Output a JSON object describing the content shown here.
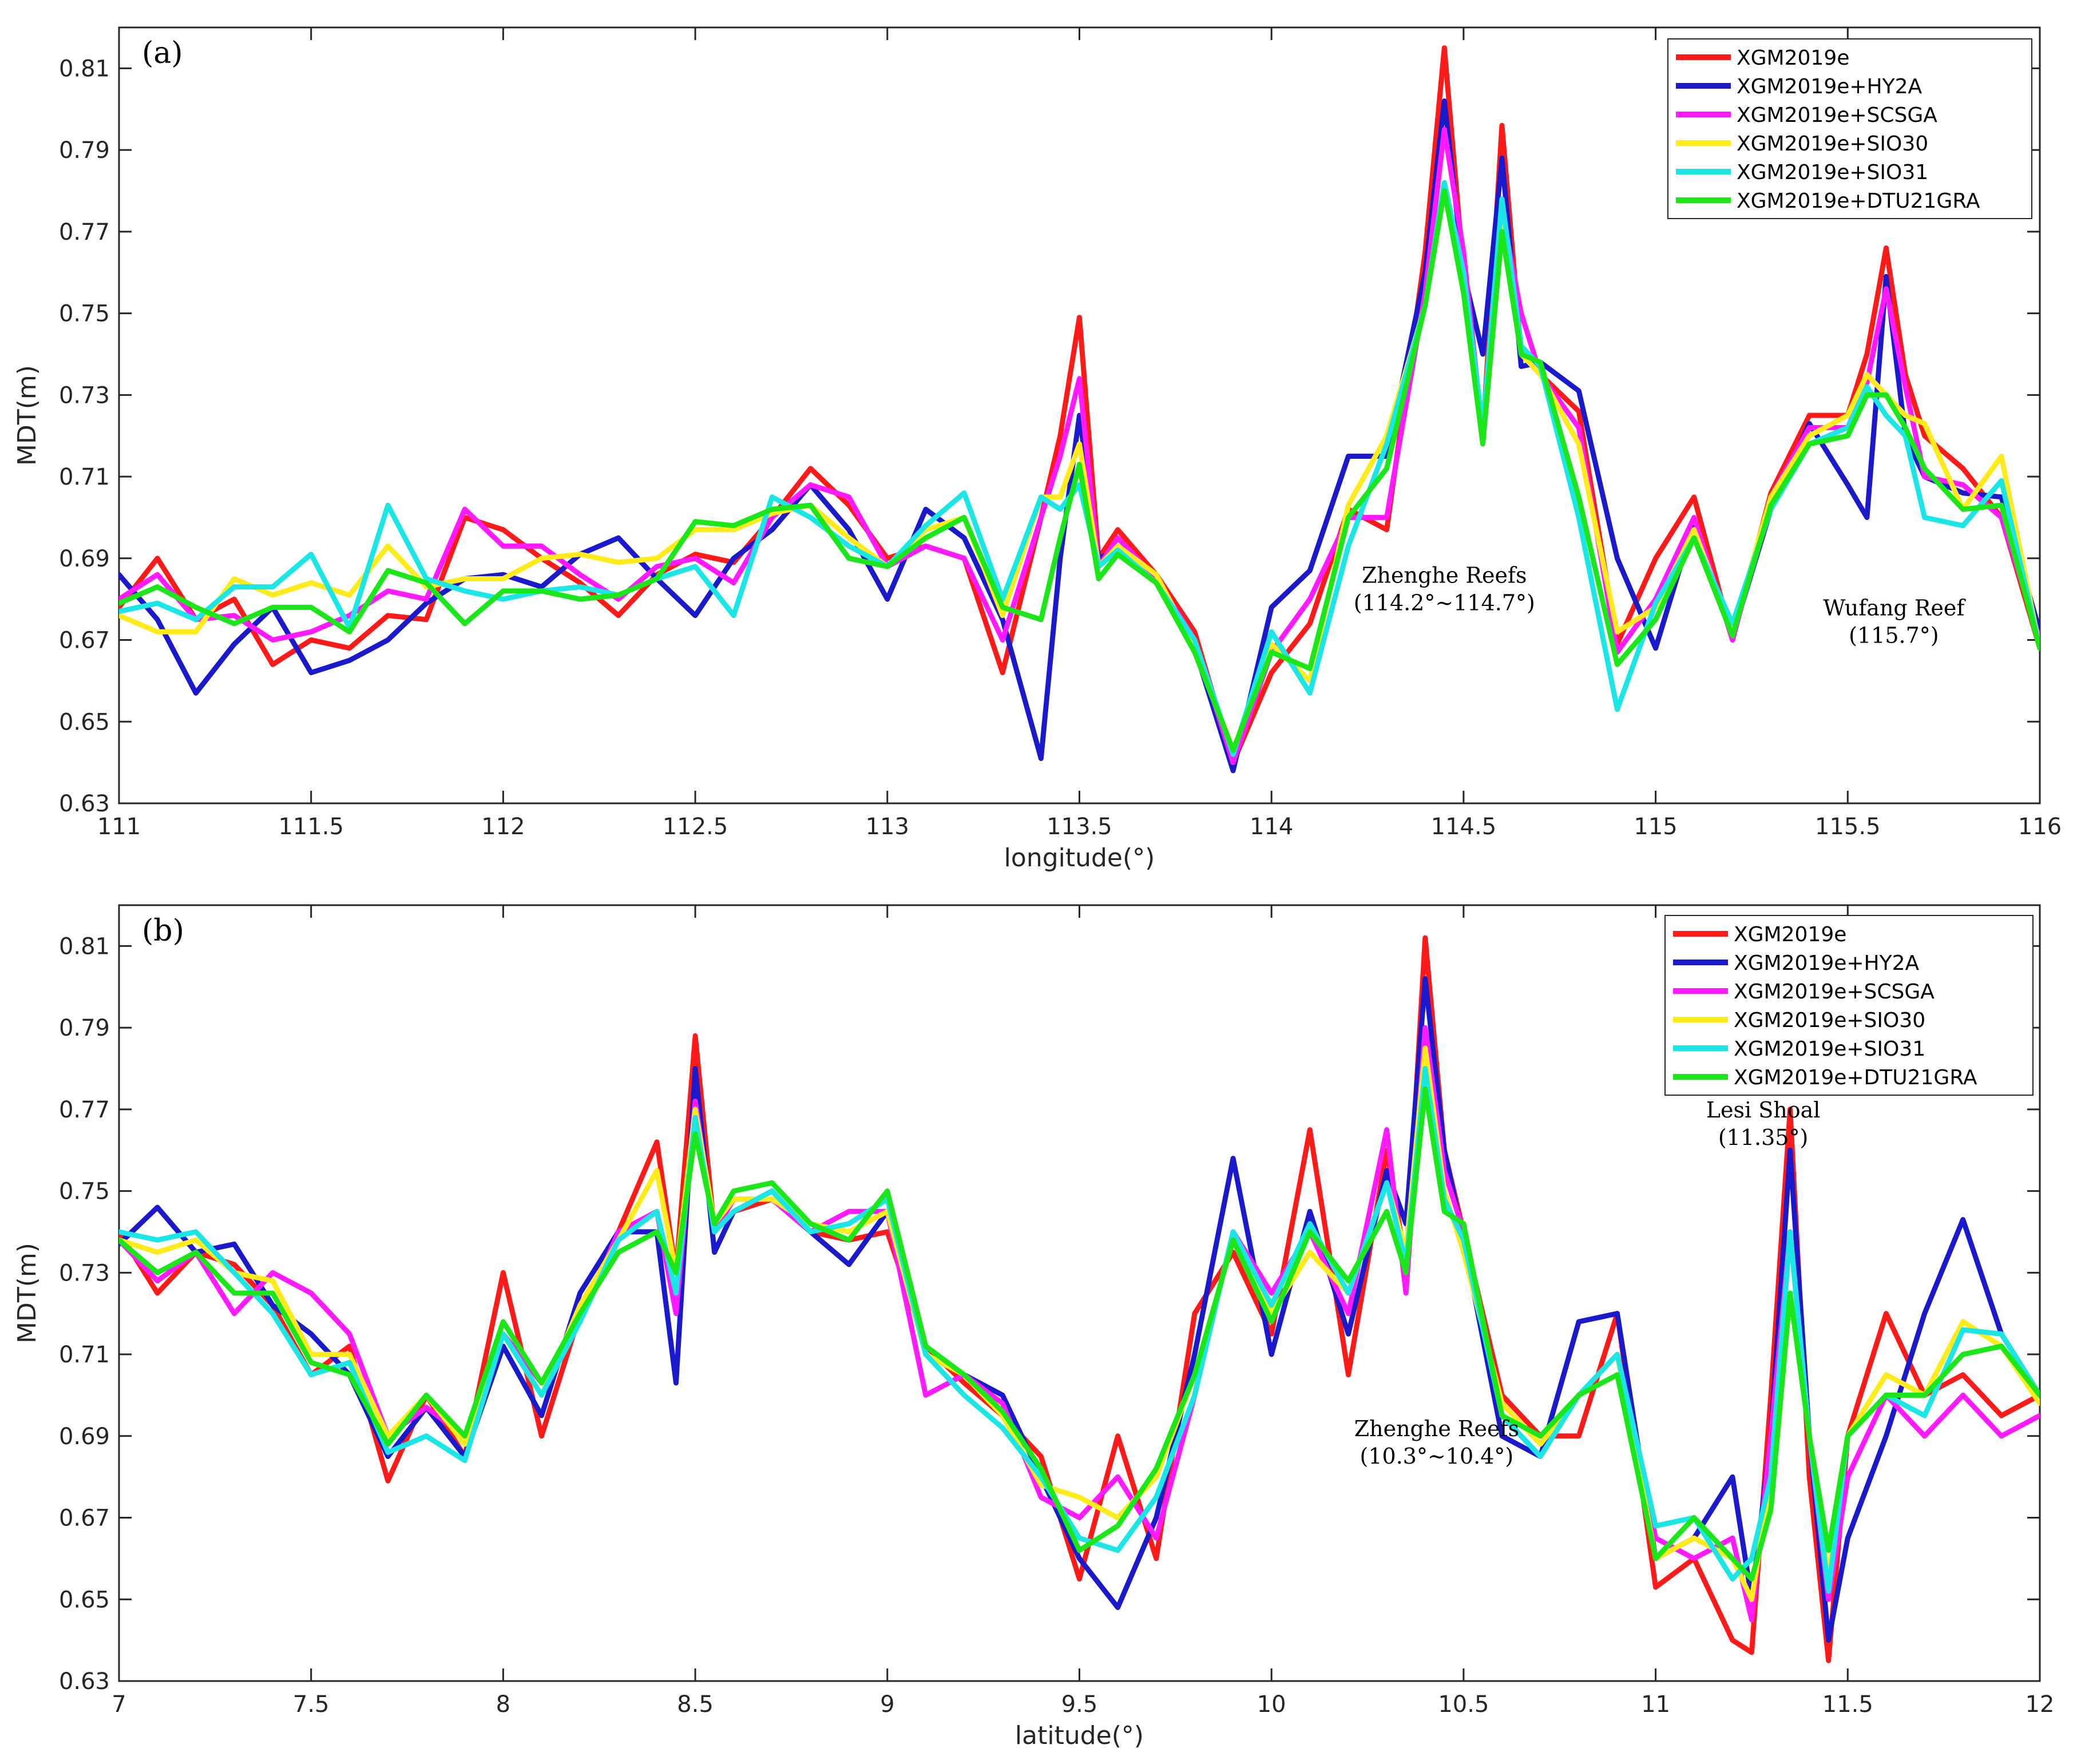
{
  "chart_data": [
    {
      "type": "line",
      "panel_label": "(a)",
      "xlabel": "longitude(°)",
      "ylabel": "MDT(m)",
      "xlim": [
        111,
        116
      ],
      "ylim": [
        0.63,
        0.82
      ],
      "xticks": [
        111,
        111.5,
        112,
        112.5,
        113,
        113.5,
        114,
        114.5,
        115,
        115.5,
        116
      ],
      "xtick_labels": [
        "111",
        "111.5",
        "112",
        "112.5",
        "113",
        "113.5",
        "114",
        "114.5",
        "115",
        "115.5",
        "116"
      ],
      "yticks": [
        0.63,
        0.65,
        0.67,
        0.69,
        0.71,
        0.73,
        0.75,
        0.77,
        0.79,
        0.81
      ],
      "ytick_labels": [
        "0.63",
        "0.65",
        "0.67",
        "0.69",
        "0.71",
        "0.73",
        "0.75",
        "0.77",
        "0.79",
        "0.81"
      ],
      "legend_position": "top-right",
      "annotations": [
        {
          "lines": [
            "Zhenghe Reefs",
            "(114.2°~114.7°)"
          ],
          "x": 114.45,
          "y": 0.684
        },
        {
          "lines": [
            "Wufang Reef",
            "(115.7°)"
          ],
          "x": 115.62,
          "y": 0.676
        }
      ],
      "x": [
        111.0,
        111.1,
        111.2,
        111.3,
        111.4,
        111.5,
        111.6,
        111.7,
        111.8,
        111.9,
        112.0,
        112.1,
        112.2,
        112.3,
        112.4,
        112.5,
        112.6,
        112.7,
        112.8,
        112.9,
        113.0,
        113.1,
        113.2,
        113.3,
        113.4,
        113.45,
        113.5,
        113.55,
        113.6,
        113.7,
        113.8,
        113.9,
        114.0,
        114.1,
        114.2,
        114.3,
        114.4,
        114.45,
        114.5,
        114.55,
        114.6,
        114.65,
        114.7,
        114.8,
        114.9,
        115.0,
        115.1,
        115.2,
        115.3,
        115.4,
        115.5,
        115.55,
        115.6,
        115.65,
        115.7,
        115.8,
        115.9,
        116.0
      ],
      "series": [
        {
          "name": "XGM2019e",
          "color": "#ff1a1a",
          "values": [
            0.678,
            0.69,
            0.675,
            0.68,
            0.664,
            0.67,
            0.668,
            0.676,
            0.675,
            0.7,
            0.697,
            0.69,
            0.684,
            0.676,
            0.686,
            0.691,
            0.689,
            0.7,
            0.712,
            0.703,
            0.69,
            0.693,
            0.69,
            0.662,
            0.7,
            0.72,
            0.749,
            0.69,
            0.697,
            0.686,
            0.672,
            0.64,
            0.662,
            0.674,
            0.702,
            0.697,
            0.765,
            0.815,
            0.76,
            0.72,
            0.796,
            0.74,
            0.735,
            0.726,
            0.669,
            0.69,
            0.705,
            0.67,
            0.706,
            0.725,
            0.725,
            0.74,
            0.766,
            0.735,
            0.72,
            0.712,
            0.7,
            0.668
          ]
        },
        {
          "name": "XGM2019e+HY2A",
          "color": "#1a1acc",
          "values": [
            0.686,
            0.675,
            0.657,
            0.669,
            0.678,
            0.662,
            0.665,
            0.67,
            0.679,
            0.685,
            0.686,
            0.683,
            0.691,
            0.695,
            0.685,
            0.676,
            0.69,
            0.697,
            0.708,
            0.697,
            0.68,
            0.702,
            0.695,
            0.675,
            0.641,
            0.69,
            0.725,
            0.69,
            0.692,
            0.684,
            0.668,
            0.638,
            0.678,
            0.687,
            0.715,
            0.715,
            0.76,
            0.802,
            0.76,
            0.74,
            0.788,
            0.737,
            0.738,
            0.731,
            0.69,
            0.668,
            0.699,
            0.671,
            0.702,
            0.723,
            0.708,
            0.7,
            0.759,
            0.72,
            0.71,
            0.706,
            0.705,
            0.672
          ]
        },
        {
          "name": "XGM2019e+SCSGA",
          "color": "#ff1aff",
          "values": [
            0.68,
            0.686,
            0.675,
            0.676,
            0.67,
            0.672,
            0.676,
            0.682,
            0.68,
            0.702,
            0.693,
            0.693,
            0.686,
            0.68,
            0.688,
            0.69,
            0.684,
            0.7,
            0.708,
            0.705,
            0.688,
            0.693,
            0.69,
            0.67,
            0.7,
            0.715,
            0.734,
            0.688,
            0.695,
            0.685,
            0.67,
            0.64,
            0.667,
            0.68,
            0.7,
            0.7,
            0.755,
            0.795,
            0.765,
            0.72,
            0.775,
            0.75,
            0.735,
            0.722,
            0.667,
            0.68,
            0.7,
            0.67,
            0.705,
            0.722,
            0.722,
            0.733,
            0.756,
            0.732,
            0.71,
            0.708,
            0.7,
            0.67
          ]
        },
        {
          "name": "XGM2019e+SIO30",
          "color": "#ffeb1a",
          "values": [
            0.676,
            0.672,
            0.672,
            0.685,
            0.681,
            0.684,
            0.681,
            0.693,
            0.683,
            0.685,
            0.685,
            0.69,
            0.691,
            0.689,
            0.69,
            0.697,
            0.697,
            0.701,
            0.703,
            0.695,
            0.688,
            0.697,
            0.7,
            0.676,
            0.705,
            0.705,
            0.718,
            0.688,
            0.693,
            0.686,
            0.668,
            0.643,
            0.669,
            0.66,
            0.703,
            0.72,
            0.752,
            0.782,
            0.76,
            0.72,
            0.775,
            0.74,
            0.735,
            0.718,
            0.672,
            0.678,
            0.697,
            0.672,
            0.705,
            0.72,
            0.725,
            0.735,
            0.73,
            0.725,
            0.723,
            0.702,
            0.715,
            0.668
          ]
        },
        {
          "name": "XGM2019e+SIO31",
          "color": "#1ae6e6",
          "values": [
            0.677,
            0.679,
            0.675,
            0.683,
            0.683,
            0.691,
            0.673,
            0.703,
            0.685,
            0.682,
            0.68,
            0.682,
            0.683,
            0.681,
            0.685,
            0.688,
            0.676,
            0.705,
            0.7,
            0.693,
            0.688,
            0.698,
            0.706,
            0.68,
            0.705,
            0.702,
            0.708,
            0.688,
            0.692,
            0.684,
            0.67,
            0.642,
            0.672,
            0.657,
            0.693,
            0.718,
            0.752,
            0.782,
            0.76,
            0.722,
            0.778,
            0.742,
            0.737,
            0.7,
            0.653,
            0.679,
            0.695,
            0.674,
            0.702,
            0.718,
            0.722,
            0.732,
            0.725,
            0.72,
            0.7,
            0.698,
            0.709,
            0.668
          ]
        },
        {
          "name": "XGM2019e+DTU21GRA",
          "color": "#1ae61a",
          "values": [
            0.679,
            0.683,
            0.678,
            0.674,
            0.678,
            0.678,
            0.672,
            0.687,
            0.684,
            0.674,
            0.682,
            0.682,
            0.68,
            0.681,
            0.685,
            0.699,
            0.698,
            0.702,
            0.703,
            0.69,
            0.688,
            0.695,
            0.7,
            0.678,
            0.675,
            0.695,
            0.713,
            0.685,
            0.691,
            0.684,
            0.667,
            0.643,
            0.667,
            0.663,
            0.7,
            0.712,
            0.752,
            0.78,
            0.755,
            0.718,
            0.77,
            0.74,
            0.738,
            0.705,
            0.664,
            0.675,
            0.695,
            0.671,
            0.703,
            0.718,
            0.72,
            0.73,
            0.73,
            0.722,
            0.712,
            0.702,
            0.703,
            0.668
          ]
        }
      ]
    },
    {
      "type": "line",
      "panel_label": "(b)",
      "xlabel": "latitude(°)",
      "ylabel": "MDT(m)",
      "xlim": [
        7,
        12
      ],
      "ylim": [
        0.63,
        0.82
      ],
      "xticks": [
        7,
        7.5,
        8,
        8.5,
        9,
        9.5,
        10,
        10.5,
        11,
        11.5,
        12
      ],
      "xtick_labels": [
        "7",
        "7.5",
        "8",
        "8.5",
        "9",
        "9.5",
        "10",
        "10.5",
        "11",
        "11.5",
        "12"
      ],
      "yticks": [
        0.63,
        0.65,
        0.67,
        0.69,
        0.71,
        0.73,
        0.75,
        0.77,
        0.79,
        0.81
      ],
      "ytick_labels": [
        "0.63",
        "0.65",
        "0.67",
        "0.69",
        "0.71",
        "0.73",
        "0.75",
        "0.77",
        "0.79",
        "0.81"
      ],
      "legend_position": "top-right",
      "annotations": [
        {
          "lines": [
            "Zhenghe Reefs",
            "(10.3°~10.4°)"
          ],
          "x": 10.43,
          "y": 0.69
        },
        {
          "lines": [
            "Lesi Shoal",
            "(11.35°)"
          ],
          "x": 11.28,
          "y": 0.768
        }
      ],
      "x": [
        7.0,
        7.1,
        7.2,
        7.3,
        7.4,
        7.5,
        7.6,
        7.7,
        7.8,
        7.9,
        8.0,
        8.1,
        8.2,
        8.3,
        8.4,
        8.45,
        8.5,
        8.55,
        8.6,
        8.7,
        8.8,
        8.9,
        9.0,
        9.1,
        9.2,
        9.3,
        9.4,
        9.5,
        9.6,
        9.7,
        9.8,
        9.9,
        10.0,
        10.1,
        10.2,
        10.3,
        10.35,
        10.4,
        10.45,
        10.5,
        10.6,
        10.7,
        10.8,
        10.9,
        11.0,
        11.1,
        11.2,
        11.25,
        11.3,
        11.35,
        11.4,
        11.45,
        11.5,
        11.6,
        11.7,
        11.8,
        11.9,
        12.0
      ],
      "series": [
        {
          "name": "XGM2019e",
          "color": "#ff1a1a",
          "values": [
            0.74,
            0.725,
            0.735,
            0.732,
            0.722,
            0.705,
            0.712,
            0.679,
            0.7,
            0.685,
            0.73,
            0.69,
            0.72,
            0.74,
            0.762,
            0.73,
            0.788,
            0.74,
            0.745,
            0.748,
            0.74,
            0.738,
            0.74,
            0.712,
            0.703,
            0.695,
            0.685,
            0.655,
            0.69,
            0.66,
            0.72,
            0.735,
            0.715,
            0.765,
            0.705,
            0.76,
            0.732,
            0.812,
            0.76,
            0.74,
            0.7,
            0.69,
            0.69,
            0.72,
            0.653,
            0.66,
            0.64,
            0.637,
            0.7,
            0.77,
            0.68,
            0.635,
            0.69,
            0.72,
            0.7,
            0.705,
            0.695,
            0.7
          ]
        },
        {
          "name": "XGM2019e+HY2A",
          "color": "#1a1acc",
          "values": [
            0.737,
            0.746,
            0.735,
            0.737,
            0.722,
            0.715,
            0.705,
            0.685,
            0.697,
            0.685,
            0.712,
            0.695,
            0.725,
            0.74,
            0.74,
            0.703,
            0.78,
            0.735,
            0.745,
            0.75,
            0.74,
            0.732,
            0.745,
            0.71,
            0.705,
            0.7,
            0.68,
            0.66,
            0.648,
            0.67,
            0.71,
            0.758,
            0.71,
            0.745,
            0.715,
            0.755,
            0.742,
            0.802,
            0.76,
            0.738,
            0.69,
            0.685,
            0.718,
            0.72,
            0.66,
            0.665,
            0.68,
            0.65,
            0.69,
            0.76,
            0.69,
            0.64,
            0.665,
            0.69,
            0.72,
            0.743,
            0.715,
            0.7
          ]
        },
        {
          "name": "XGM2019e+SCSGA",
          "color": "#ff1aff",
          "values": [
            0.738,
            0.728,
            0.735,
            0.72,
            0.73,
            0.725,
            0.715,
            0.69,
            0.697,
            0.69,
            0.715,
            0.703,
            0.718,
            0.74,
            0.745,
            0.72,
            0.772,
            0.74,
            0.748,
            0.748,
            0.74,
            0.745,
            0.745,
            0.7,
            0.705,
            0.698,
            0.675,
            0.67,
            0.68,
            0.665,
            0.7,
            0.74,
            0.725,
            0.74,
            0.72,
            0.765,
            0.725,
            0.79,
            0.755,
            0.74,
            0.695,
            0.685,
            0.7,
            0.71,
            0.665,
            0.66,
            0.665,
            0.645,
            0.69,
            0.74,
            0.69,
            0.65,
            0.68,
            0.7,
            0.69,
            0.7,
            0.69,
            0.695
          ]
        },
        {
          "name": "XGM2019e+SIO30",
          "color": "#ffeb1a",
          "values": [
            0.738,
            0.735,
            0.738,
            0.73,
            0.728,
            0.71,
            0.71,
            0.69,
            0.7,
            0.688,
            0.715,
            0.7,
            0.722,
            0.738,
            0.755,
            0.73,
            0.77,
            0.742,
            0.748,
            0.748,
            0.742,
            0.74,
            0.745,
            0.71,
            0.705,
            0.695,
            0.678,
            0.675,
            0.67,
            0.68,
            0.705,
            0.738,
            0.72,
            0.735,
            0.725,
            0.752,
            0.735,
            0.785,
            0.75,
            0.735,
            0.698,
            0.688,
            0.7,
            0.71,
            0.66,
            0.665,
            0.66,
            0.65,
            0.68,
            0.74,
            0.69,
            0.655,
            0.69,
            0.705,
            0.7,
            0.718,
            0.712,
            0.698
          ]
        },
        {
          "name": "XGM2019e+SIO31",
          "color": "#1ae6e6",
          "values": [
            0.74,
            0.738,
            0.74,
            0.73,
            0.72,
            0.705,
            0.708,
            0.686,
            0.69,
            0.684,
            0.715,
            0.7,
            0.718,
            0.738,
            0.745,
            0.725,
            0.768,
            0.74,
            0.745,
            0.75,
            0.74,
            0.742,
            0.748,
            0.71,
            0.7,
            0.692,
            0.68,
            0.665,
            0.662,
            0.675,
            0.7,
            0.74,
            0.722,
            0.742,
            0.725,
            0.752,
            0.732,
            0.78,
            0.748,
            0.738,
            0.695,
            0.685,
            0.7,
            0.71,
            0.668,
            0.67,
            0.655,
            0.66,
            0.68,
            0.74,
            0.69,
            0.652,
            0.69,
            0.7,
            0.695,
            0.716,
            0.715,
            0.7
          ]
        },
        {
          "name": "XGM2019e+DTU21GRA",
          "color": "#1ae61a",
          "values": [
            0.738,
            0.73,
            0.735,
            0.725,
            0.725,
            0.708,
            0.705,
            0.688,
            0.7,
            0.69,
            0.718,
            0.703,
            0.72,
            0.735,
            0.74,
            0.73,
            0.764,
            0.742,
            0.75,
            0.752,
            0.742,
            0.738,
            0.75,
            0.712,
            0.705,
            0.696,
            0.682,
            0.662,
            0.668,
            0.682,
            0.705,
            0.738,
            0.718,
            0.74,
            0.728,
            0.745,
            0.73,
            0.775,
            0.745,
            0.742,
            0.695,
            0.69,
            0.7,
            0.705,
            0.66,
            0.67,
            0.66,
            0.655,
            0.672,
            0.725,
            0.69,
            0.662,
            0.69,
            0.7,
            0.7,
            0.71,
            0.712,
            0.7
          ]
        }
      ]
    }
  ]
}
